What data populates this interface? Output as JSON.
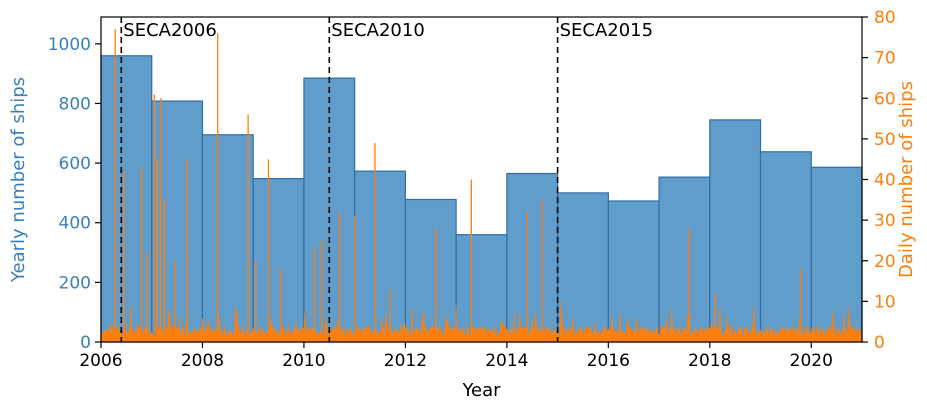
{
  "chart_data": {
    "type": "bar",
    "xlabel": "Year",
    "ylabel_left": "Yearly number of ships",
    "ylabel_right": "Daily number of ships",
    "xlim": [
      2006,
      2021
    ],
    "ylim_left": [
      0,
      1090
    ],
    "ylim_right": [
      0,
      80
    ],
    "x_ticks": [
      "2006",
      "2008",
      "2010",
      "2012",
      "2014",
      "2016",
      "2018",
      "2020"
    ],
    "y_left_ticks": [
      "0",
      "200",
      "400",
      "600",
      "800",
      "1000"
    ],
    "y_right_ticks": [
      "0",
      "10",
      "20",
      "30",
      "40",
      "50",
      "60",
      "70",
      "80"
    ],
    "colors": {
      "yearly": "#4a8fc4",
      "yearly_edge": "#2e6fa5",
      "daily": "#ff7f0e",
      "left_axis": "#3b7fb8",
      "right_axis": "#ff7f0e"
    },
    "series": [
      {
        "name": "Yearly number of ships",
        "axis": "left",
        "style": "histogram",
        "x_start": [
          2006,
          2007,
          2008,
          2009,
          2010,
          2011,
          2012,
          2013,
          2014,
          2015,
          2016,
          2017,
          2018,
          2019,
          2020
        ],
        "values": [
          960,
          808,
          695,
          548,
          885,
          573,
          478,
          360,
          565,
          500,
          473,
          553,
          745,
          638,
          586
        ]
      },
      {
        "name": "Daily number of ships",
        "axis": "right",
        "style": "spikes",
        "peaks": [
          {
            "x": 2006.28,
            "y": 77
          },
          {
            "x": 2006.45,
            "y": 42
          },
          {
            "x": 2006.8,
            "y": 43
          },
          {
            "x": 2006.9,
            "y": 22
          },
          {
            "x": 2007.05,
            "y": 61
          },
          {
            "x": 2007.1,
            "y": 45
          },
          {
            "x": 2007.18,
            "y": 60
          },
          {
            "x": 2007.25,
            "y": 35
          },
          {
            "x": 2007.45,
            "y": 20
          },
          {
            "x": 2007.7,
            "y": 45
          },
          {
            "x": 2008.3,
            "y": 76
          },
          {
            "x": 2008.9,
            "y": 56
          },
          {
            "x": 2009.05,
            "y": 20
          },
          {
            "x": 2009.3,
            "y": 45
          },
          {
            "x": 2009.55,
            "y": 18
          },
          {
            "x": 2010.2,
            "y": 23
          },
          {
            "x": 2010.35,
            "y": 25
          },
          {
            "x": 2010.7,
            "y": 32
          },
          {
            "x": 2011.0,
            "y": 31
          },
          {
            "x": 2011.4,
            "y": 49
          },
          {
            "x": 2011.7,
            "y": 13
          },
          {
            "x": 2012.6,
            "y": 28
          },
          {
            "x": 2013.3,
            "y": 40
          },
          {
            "x": 2014.4,
            "y": 32
          },
          {
            "x": 2014.7,
            "y": 35
          },
          {
            "x": 2017.6,
            "y": 28
          },
          {
            "x": 2018.1,
            "y": 12
          },
          {
            "x": 2019.8,
            "y": 18
          }
        ]
      }
    ],
    "vlines": [
      {
        "x": 2006.4,
        "label": "SECA2006"
      },
      {
        "x": 2010.5,
        "label": "SECA2010"
      },
      {
        "x": 2015.0,
        "label": "SECA2015"
      }
    ],
    "legend": "none",
    "grid": false
  }
}
